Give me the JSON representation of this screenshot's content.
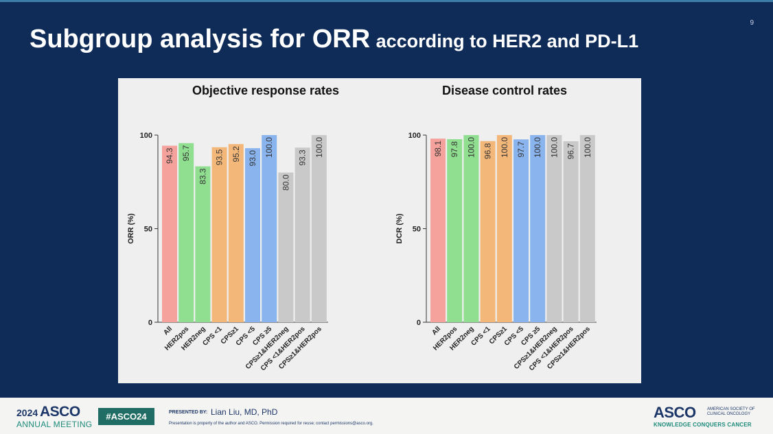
{
  "slide": {
    "number": "9",
    "title_main": "Subgroup analysis for ORR",
    "title_sub": "according to HER2 and PD-L1"
  },
  "chart_data": [
    {
      "type": "bar",
      "title": "Objective response rates",
      "ylabel": "ORR (%)",
      "ylim": [
        0,
        100
      ],
      "yticks": [
        0,
        50,
        100
      ],
      "grid": false,
      "categories": [
        "All",
        "HER2pos",
        "HER2neg",
        "CPS <1",
        "CPS≥1",
        "CPS <5",
        "CPS ≥5",
        "CPS≥1&HER2neg",
        "CPS <1&HER2pos",
        "CPS≥1&HER2pos"
      ],
      "values": [
        94.3,
        95.7,
        83.3,
        93.5,
        95.2,
        93.0,
        100.0,
        80.0,
        93.3,
        100.0
      ],
      "labels": [
        "94.3",
        "95.7",
        "83.3",
        "93.5",
        "95.2",
        "93.0",
        "100.0",
        "80.0",
        "93.3",
        "100.0"
      ],
      "colors": [
        "#f4a29b",
        "#90de90",
        "#90de90",
        "#f4b77a",
        "#f4b77a",
        "#8ab4ee",
        "#8ab4ee",
        "#c9c9c9",
        "#c9c9c9",
        "#c9c9c9"
      ]
    },
    {
      "type": "bar",
      "title": "Disease control rates",
      "ylabel": "DCR (%)",
      "ylim": [
        0,
        100
      ],
      "yticks": [
        0,
        50,
        100
      ],
      "grid": false,
      "categories": [
        "All",
        "HER2pos",
        "HER2neg",
        "CPS <1",
        "CPS≥1",
        "CPS <5",
        "CPS ≥5",
        "CPS≥1&HER2neg",
        "CPS <1&HER2pos",
        "CPS≥1&HER2pos"
      ],
      "values": [
        98.1,
        97.8,
        100.0,
        96.8,
        100.0,
        97.7,
        100.0,
        100.0,
        96.7,
        100.0
      ],
      "labels": [
        "98.1",
        "97.8",
        "100.0",
        "96.8",
        "100.0",
        "97.7",
        "100.0",
        "100.0",
        "96.7",
        "100.0"
      ],
      "colors": [
        "#f4a29b",
        "#90de90",
        "#90de90",
        "#f4b77a",
        "#f4b77a",
        "#8ab4ee",
        "#8ab4ee",
        "#c9c9c9",
        "#c9c9c9",
        "#c9c9c9"
      ]
    }
  ],
  "footer": {
    "year": "2024",
    "asco": "ASCO",
    "meeting": "ANNUAL MEETING",
    "hashtag": "#ASCO24",
    "presented_by": "PRESENTED BY:",
    "presenter": "Lian Liu, MD, PhD",
    "disclaimer": "Presentation is property of the author and ASCO. Permission required for reuse; contact permissions@asco.org.",
    "asco_right": "ASCO",
    "society": "AMERICAN SOCIETY OF CLINICAL ONCOLOGY",
    "tagline": "KNOWLEDGE CONQUERS CANCER"
  }
}
